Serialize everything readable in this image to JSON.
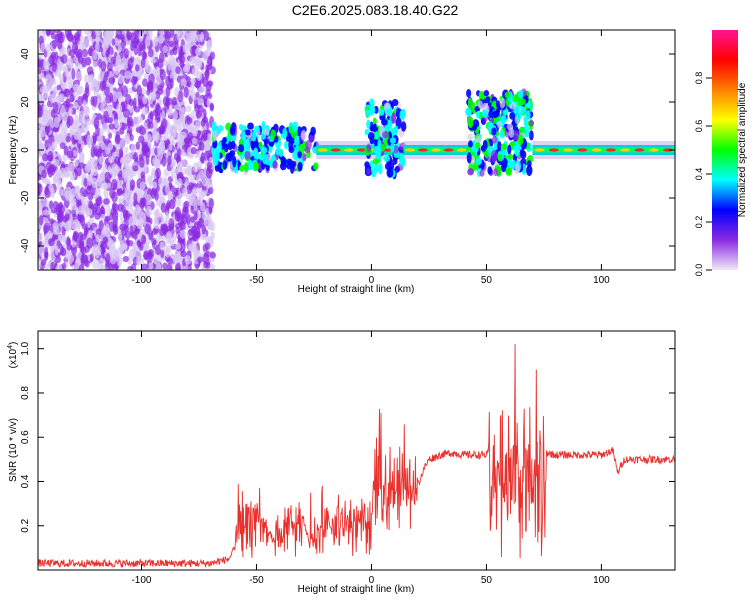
{
  "title": "C2E6.2025.083.18.40.G22",
  "chart_data": [
    {
      "type": "heatmap",
      "xlabel": "Height of straight line (km)",
      "ylabel": "Frequency (Hz)",
      "xlim": [
        -145,
        132
      ],
      "ylim": [
        -50,
        50
      ],
      "x_ticks": [
        -100,
        -50,
        0,
        50,
        100
      ],
      "y_ticks": [
        -40,
        -20,
        0,
        20,
        40
      ],
      "colorbar": {
        "label": "Normalized spectral amplitude",
        "range": [
          0,
          1
        ],
        "ticks": [
          "0.0",
          "0.2",
          "0.4",
          "0.6",
          "0.8"
        ],
        "colors": [
          "#f0e8f8",
          "#8a2be2",
          "#0000ff",
          "#00ffff",
          "#00ff00",
          "#ffff00",
          "#ff8000",
          "#ff0000",
          "#ff1493"
        ]
      },
      "regions": [
        {
          "x": [
            -145,
            -69
          ],
          "freq_range": [
            -50,
            50
          ],
          "amplitude": 0.1
        },
        {
          "x": [
            -69,
            -24
          ],
          "freq_range": [
            -8,
            10
          ],
          "amplitude": 0.3
        },
        {
          "x": [
            -24,
            10
          ],
          "freq_range": [
            -2,
            2
          ],
          "amplitude": 0.8
        },
        {
          "x": [
            -2,
            14
          ],
          "freq_range": [
            -10,
            20
          ],
          "amplitude": 0.3
        },
        {
          "x": [
            14,
            42
          ],
          "freq_range": [
            -2,
            2
          ],
          "amplitude": 0.8
        },
        {
          "x": [
            42,
            70
          ],
          "freq_range": [
            -10,
            24
          ],
          "amplitude": 0.35
        },
        {
          "x": [
            70,
            132
          ],
          "freq_range": [
            -2,
            2
          ],
          "amplitude": 0.8
        }
      ]
    },
    {
      "type": "line",
      "xlabel": "Height of straight line (km)",
      "ylabel": "SNR (10 * v/v)",
      "yscale_label": "(x10",
      "yscale_exp": "4",
      "yscale_close": ")",
      "xlim": [
        -145,
        132
      ],
      "ylim": [
        0,
        1.08
      ],
      "x_ticks": [
        -100,
        -50,
        0,
        50,
        100
      ],
      "y_ticks": [
        "0.2",
        "0.4",
        "0.6",
        "0.8",
        "1.0"
      ],
      "color": "#e8302c",
      "series": [
        {
          "x": [
            -145,
            -120,
            -100,
            -80,
            -70,
            -62,
            -58,
            -55,
            -52,
            -50,
            -47,
            -45,
            -42,
            -38,
            -35,
            -32,
            -30,
            -27,
            -25,
            -22,
            -20,
            -17,
            -15,
            -12,
            -10,
            -7,
            -5,
            -2,
            0,
            3,
            5,
            8,
            10,
            13,
            15,
            18,
            20,
            23,
            25,
            30,
            35,
            40,
            45,
            50,
            53,
            56,
            60,
            65,
            70,
            73,
            76,
            80,
            90,
            100,
            105,
            107,
            110,
            120,
            132
          ],
          "y": [
            0.03,
            0.03,
            0.03,
            0.03,
            0.03,
            0.05,
            0.12,
            0.3,
            0.38,
            0.34,
            0.25,
            0.18,
            0.12,
            0.2,
            0.28,
            0.3,
            0.25,
            0.12,
            0.14,
            0.2,
            0.24,
            0.25,
            0.28,
            0.22,
            0.3,
            0.32,
            0.32,
            0.28,
            0.33,
            0.36,
            0.38,
            0.4,
            0.38,
            0.4,
            0.44,
            0.48,
            0.38,
            0.46,
            0.5,
            0.52,
            0.53,
            0.52,
            0.52,
            0.52,
            0.55,
            0.5,
            0.52,
            0.55,
            0.5,
            0.55,
            0.53,
            0.52,
            0.52,
            0.52,
            0.54,
            0.44,
            0.5,
            0.5,
            0.5
          ]
        }
      ],
      "noise_bands": [
        {
          "x": [
            -59,
            -45
          ],
          "min": 0.05,
          "max": 0.42
        },
        {
          "x": [
            -42,
            -30
          ],
          "min": 0.05,
          "max": 0.36
        },
        {
          "x": [
            -27,
            0
          ],
          "min": 0.06,
          "max": 0.42
        },
        {
          "x": [
            0,
            20
          ],
          "min": 0.18,
          "max": 0.75
        },
        {
          "x": [
            51,
            76
          ],
          "min": 0.05,
          "max": 1.08
        }
      ]
    }
  ]
}
